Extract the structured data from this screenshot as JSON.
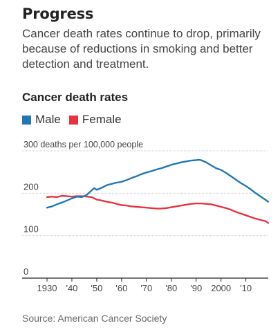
{
  "headline": "Progress",
  "dek": "Cancer death rates continue to drop, primarily because of reductions in smoking and better detection and treatment.",
  "source": "Source: American Cancer Society",
  "colors": {
    "male": "#1f77b4",
    "female": "#e8333f",
    "grid": "#cccccc",
    "axis": "#222222"
  },
  "chart_data": {
    "type": "line",
    "title": "Cancer death rates",
    "ylabel": "300 deaths per 100,000 people",
    "ylim": [
      0,
      300
    ],
    "xlim": [
      1930,
      2019
    ],
    "yticks": [
      {
        "value": 300,
        "label": ""
      },
      {
        "value": 200,
        "label": "200"
      },
      {
        "value": 100,
        "label": "100"
      },
      {
        "value": 0,
        "label": "0"
      }
    ],
    "xticks": [
      {
        "value": 1930,
        "label": "1930"
      },
      {
        "value": 1940,
        "label": "'40"
      },
      {
        "value": 1950,
        "label": "'50"
      },
      {
        "value": 1960,
        "label": "'60"
      },
      {
        "value": 1970,
        "label": "'70"
      },
      {
        "value": 1980,
        "label": "'80"
      },
      {
        "value": 1990,
        "label": "'90"
      },
      {
        "value": 2000,
        "label": "2000"
      },
      {
        "value": 2010,
        "label": "'10"
      }
    ],
    "grid": true,
    "legend_position": "top-left",
    "x": [
      1930,
      1932,
      1934,
      1936,
      1938,
      1940,
      1942,
      1944,
      1946,
      1948,
      1949,
      1950,
      1952,
      1954,
      1956,
      1958,
      1960,
      1962,
      1964,
      1966,
      1968,
      1970,
      1972,
      1974,
      1976,
      1978,
      1980,
      1982,
      1984,
      1986,
      1988,
      1990,
      1991,
      1992,
      1994,
      1996,
      1998,
      2000,
      2002,
      2004,
      2006,
      2008,
      2010,
      2012,
      2014,
      2016,
      2018,
      2019
    ],
    "series": [
      {
        "name": "Male",
        "values": [
          166,
          169,
          174,
          178,
          183,
          188,
          192,
          191,
          196,
          207,
          212,
          208,
          213,
          219,
          222,
          225,
          227,
          231,
          236,
          240,
          245,
          249,
          252,
          256,
          259,
          263,
          267,
          270,
          273,
          275,
          277,
          278,
          279,
          278,
          273,
          266,
          259,
          255,
          248,
          240,
          232,
          224,
          217,
          209,
          200,
          192,
          184,
          180
        ]
      },
      {
        "name": "Female",
        "values": [
          191,
          192,
          191,
          194,
          193,
          192,
          193,
          193,
          192,
          191,
          188,
          185,
          183,
          180,
          178,
          175,
          172,
          171,
          169,
          168,
          167,
          166,
          165,
          164,
          164,
          165,
          167,
          169,
          171,
          173,
          175,
          176,
          176,
          176,
          175,
          174,
          171,
          168,
          165,
          161,
          156,
          152,
          148,
          144,
          140,
          137,
          134,
          130
        ]
      }
    ]
  }
}
